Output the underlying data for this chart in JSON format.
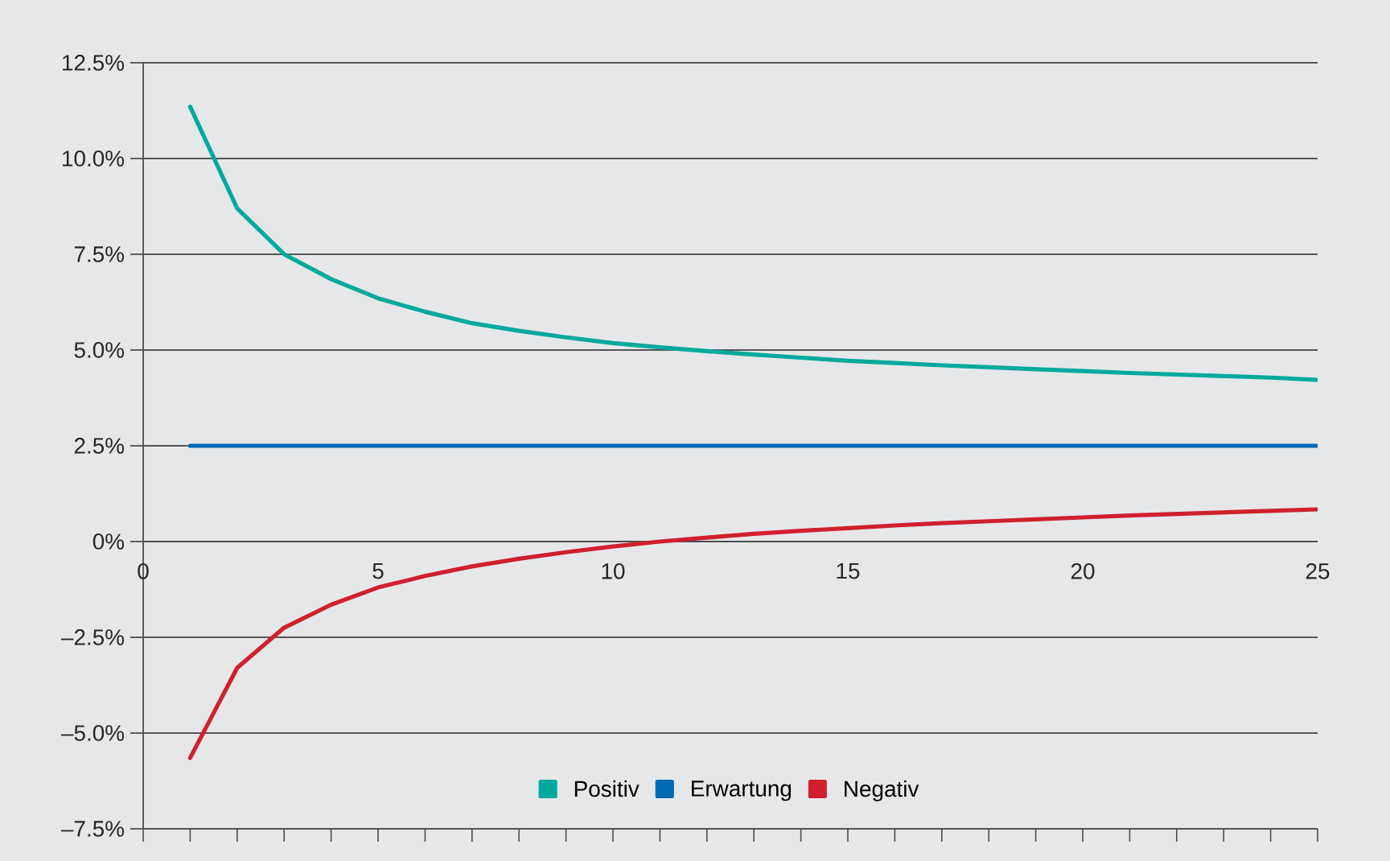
{
  "chart_data": {
    "type": "line",
    "x": [
      1,
      2,
      3,
      4,
      5,
      6,
      7,
      8,
      9,
      10,
      11,
      12,
      13,
      14,
      15,
      16,
      17,
      18,
      19,
      20,
      21,
      22,
      23,
      24,
      25
    ],
    "series": [
      {
        "name": "Positiv",
        "color": "#00a99d",
        "values": [
          11.35,
          8.7,
          7.5,
          6.85,
          6.35,
          6.0,
          5.7,
          5.5,
          5.33,
          5.18,
          5.07,
          4.97,
          4.88,
          4.8,
          4.72,
          4.66,
          4.6,
          4.55,
          4.5,
          4.45,
          4.4,
          4.36,
          4.32,
          4.28,
          4.22
        ]
      },
      {
        "name": "Erwartung",
        "color": "#0069b4",
        "values": [
          2.5,
          2.5,
          2.5,
          2.5,
          2.5,
          2.5,
          2.5,
          2.5,
          2.5,
          2.5,
          2.5,
          2.5,
          2.5,
          2.5,
          2.5,
          2.5,
          2.5,
          2.5,
          2.5,
          2.5,
          2.5,
          2.5,
          2.5,
          2.5,
          2.5
        ]
      },
      {
        "name": "Negativ",
        "color": "#d0202e",
        "values": [
          -5.65,
          -3.3,
          -2.25,
          -1.65,
          -1.2,
          -0.9,
          -0.65,
          -0.45,
          -0.28,
          -0.13,
          0.0,
          0.1,
          0.2,
          0.28,
          0.35,
          0.42,
          0.48,
          0.53,
          0.58,
          0.63,
          0.68,
          0.72,
          0.76,
          0.8,
          0.84
        ]
      }
    ],
    "xlim": [
      0,
      25
    ],
    "xticks": [
      0,
      5,
      10,
      15,
      20,
      25
    ],
    "ylim": [
      -7.5,
      12.5
    ],
    "yticks": [
      {
        "value": 12.5,
        "label": "12.5%"
      },
      {
        "value": 10,
        "label": "10.0%"
      },
      {
        "value": 7.5,
        "label": "7.5%"
      },
      {
        "value": 5,
        "label": "5.0%"
      },
      {
        "value": 2.5,
        "label": "2.5%"
      },
      {
        "value": 0,
        "label": "0%"
      },
      {
        "value": -2.5,
        "label": "–2.5%"
      },
      {
        "value": -5,
        "label": "–5.0%"
      },
      {
        "value": -7.5,
        "label": "–7.5%"
      }
    ],
    "grid": "y",
    "legend": "bottom",
    "line_style": "solid"
  }
}
